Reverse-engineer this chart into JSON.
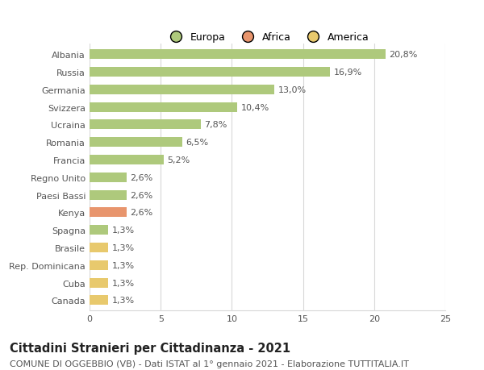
{
  "categories": [
    "Albania",
    "Russia",
    "Germania",
    "Svizzera",
    "Ucraina",
    "Romania",
    "Francia",
    "Regno Unito",
    "Paesi Bassi",
    "Kenya",
    "Spagna",
    "Brasile",
    "Rep. Dominicana",
    "Cuba",
    "Canada"
  ],
  "values": [
    20.8,
    16.9,
    13.0,
    10.4,
    7.8,
    6.5,
    5.2,
    2.6,
    2.6,
    2.6,
    1.3,
    1.3,
    1.3,
    1.3,
    1.3
  ],
  "labels": [
    "20,8%",
    "16,9%",
    "13,0%",
    "10,4%",
    "7,8%",
    "6,5%",
    "5,2%",
    "2,6%",
    "2,6%",
    "2,6%",
    "1,3%",
    "1,3%",
    "1,3%",
    "1,3%",
    "1,3%"
  ],
  "colors": [
    "#aec97c",
    "#aec97c",
    "#aec97c",
    "#aec97c",
    "#aec97c",
    "#aec97c",
    "#aec97c",
    "#aec97c",
    "#aec97c",
    "#e8956d",
    "#aec97c",
    "#e8c96d",
    "#e8c96d",
    "#e8c96d",
    "#e8c96d"
  ],
  "legend_labels": [
    "Europa",
    "Africa",
    "America"
  ],
  "legend_colors": [
    "#aec97c",
    "#e8956d",
    "#e8c96d"
  ],
  "title": "Cittadini Stranieri per Cittadinanza - 2021",
  "subtitle": "COMUNE DI OGGEBBIO (VB) - Dati ISTAT al 1° gennaio 2021 - Elaborazione TUTTITALIA.IT",
  "xlim": [
    0,
    25
  ],
  "xticks": [
    0,
    5,
    10,
    15,
    20,
    25
  ],
  "background_color": "#ffffff",
  "bar_height": 0.55,
  "grid_color": "#d8d8d8",
  "label_fontsize": 8.0,
  "ytick_fontsize": 8.0,
  "xtick_fontsize": 8.0,
  "legend_fontsize": 9.0,
  "title_fontsize": 10.5,
  "subtitle_fontsize": 8.0,
  "text_color": "#555555",
  "title_color": "#222222"
}
